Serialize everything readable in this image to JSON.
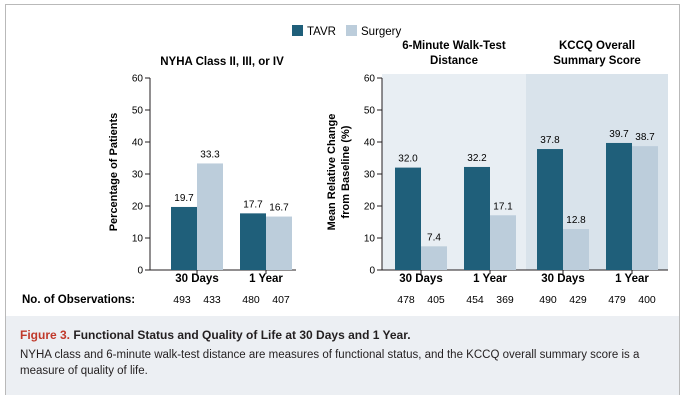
{
  "legend": {
    "tavr_label": "TAVR",
    "surgery_label": "Surgery",
    "tavr_color": "#1f5f7a",
    "surgery_color": "#bccddb"
  },
  "observations_label": "No. of Observations:",
  "chart_data": [
    {
      "type": "bar",
      "title": "NYHA Class II, III, or IV",
      "ylabel": "Percentage of Patients",
      "ylim": [
        0,
        60
      ],
      "yticks": [
        0,
        10,
        20,
        30,
        40,
        50,
        60
      ],
      "categories": [
        "30 Days",
        "1 Year"
      ],
      "series": [
        {
          "name": "TAVR",
          "values": [
            19.7,
            17.7
          ],
          "labels": [
            "19.7",
            "17.7"
          ]
        },
        {
          "name": "Surgery",
          "values": [
            33.3,
            16.7
          ],
          "labels": [
            "33.3",
            "16.7"
          ]
        }
      ],
      "observations": [
        [
          "493",
          "433"
        ],
        [
          "480",
          "407"
        ]
      ]
    },
    {
      "type": "bar",
      "ylabel": "Mean Relative Change from Baseline (%)",
      "ylim": [
        0,
        60
      ],
      "yticks": [
        0,
        10,
        20,
        30,
        40,
        50,
        60
      ],
      "panels": [
        {
          "title": "6-Minute Walk-Test Distance",
          "categories": [
            "30 Days",
            "1 Year"
          ],
          "series": [
            {
              "name": "TAVR",
              "values": [
                32.0,
                32.2
              ],
              "labels": [
                "32.0",
                "32.2"
              ]
            },
            {
              "name": "Surgery",
              "values": [
                7.4,
                17.1
              ],
              "labels": [
                "7.4",
                "17.1"
              ]
            }
          ],
          "observations": [
            [
              "478",
              "405"
            ],
            [
              "454",
              "369"
            ]
          ]
        },
        {
          "title": "KCCQ Overall Summary Score",
          "categories": [
            "30 Days",
            "1 Year"
          ],
          "series": [
            {
              "name": "TAVR",
              "values": [
                37.8,
                39.7
              ],
              "labels": [
                "37.8",
                "39.7"
              ]
            },
            {
              "name": "Surgery",
              "values": [
                12.8,
                38.7
              ],
              "labels": [
                "12.8",
                "38.7"
              ]
            }
          ],
          "observations": [
            [
              "490",
              "429"
            ],
            [
              "479",
              "400"
            ]
          ]
        }
      ]
    }
  ],
  "caption": {
    "figure_label": "Figure 3.",
    "title": "Functional Status and Quality of Life at 30 Days and 1 Year.",
    "body": "NYHA class and 6-minute walk-test distance are measures of functional status, and the KCCQ overall summary score is a measure of quality of life."
  }
}
